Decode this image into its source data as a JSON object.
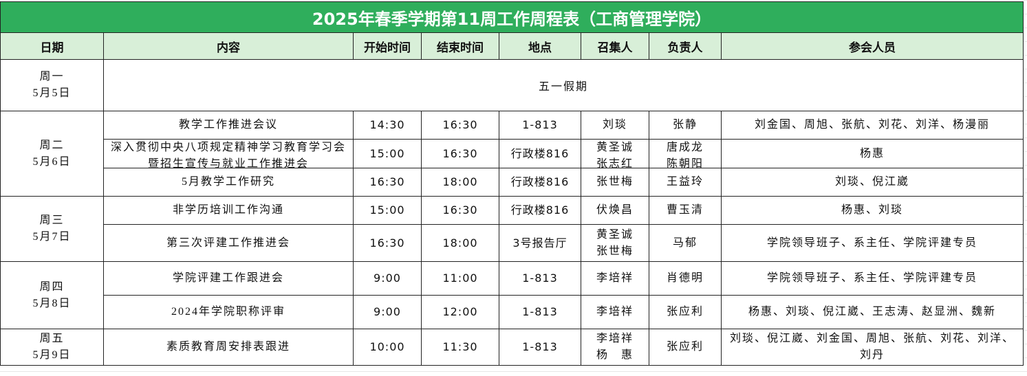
{
  "title": "2025年春季学期第11周工作周程表（工商管理学院）",
  "colors": {
    "title_bg": "#2fae5c",
    "header_bg": "#d8efd8"
  },
  "headers": [
    "日期",
    "内容",
    "开始时间",
    "结束时间",
    "地点",
    "召集人",
    "负责人",
    "参会人员"
  ],
  "days": [
    {
      "day": "周一",
      "date": "5月5日",
      "holiday": "五一假期",
      "rows": []
    },
    {
      "day": "周二",
      "date": "5月6日",
      "rows": [
        {
          "content": "教学工作推进会议",
          "start": "14:30",
          "end": "16:30",
          "place": "1-813",
          "convener": "刘琰",
          "owner": "张静",
          "attendees": "刘金国、周旭、张航、刘花、刘洋、杨漫丽"
        },
        {
          "content": "深入贯彻中央八项规定精神学习教育学习会暨招生宣传与就业工作推进会",
          "start": "15:00",
          "end": "16:30",
          "place": "行政楼816",
          "convener": "黄圣诚 张志红",
          "owner": "唐成龙 陈朝阳",
          "attendees": "杨惠"
        },
        {
          "content": "5月教学工作研究",
          "start": "16:30",
          "end": "18:00",
          "place": "行政楼816",
          "convener": "张世梅",
          "owner": "王益玲",
          "attendees": "刘琰、倪江崴"
        }
      ]
    },
    {
      "day": "周三",
      "date": "5月7日",
      "rows": [
        {
          "content": "非学历培训工作沟通",
          "start": "15:00",
          "end": "16:30",
          "place": "行政楼816",
          "convener": "伏焕昌",
          "owner": "曹玉清",
          "attendees": "杨惠、刘琰"
        },
        {
          "content": "第三次评建工作推进会",
          "start": "16:30",
          "end": "18:00",
          "place": "3号报告厅",
          "convener": "黄圣诚 张世梅",
          "owner": "马郁",
          "attendees": "学院领导班子、系主任、学院评建专员"
        }
      ]
    },
    {
      "day": "周四",
      "date": "5月8日",
      "rows": [
        {
          "content": "学院评建工作跟进会",
          "start": "9:00",
          "end": "11:00",
          "place": "1-813",
          "convener": "李培祥",
          "owner": "肖德明",
          "attendees": "学院领导班子、系主任、学院评建专员"
        },
        {
          "content": "2024年学院职称评审",
          "start": "9:00",
          "end": "12:00",
          "place": "1-813",
          "convener": "李培祥",
          "owner": "张应利",
          "attendees": "杨惠、刘琰、倪江崴、王志涛、赵显洲、魏新"
        }
      ]
    },
    {
      "day": "周五",
      "date": "5月9日",
      "rows": [
        {
          "content": "素质教育周安排表跟进",
          "start": "10:00",
          "end": "11:30",
          "place": "1-813",
          "convener": "李培祥 杨　惠",
          "owner": "张应利",
          "attendees": "刘琰、倪江崴、刘金国、周旭、张航、刘花、刘洋、刘丹"
        }
      ]
    }
  ]
}
